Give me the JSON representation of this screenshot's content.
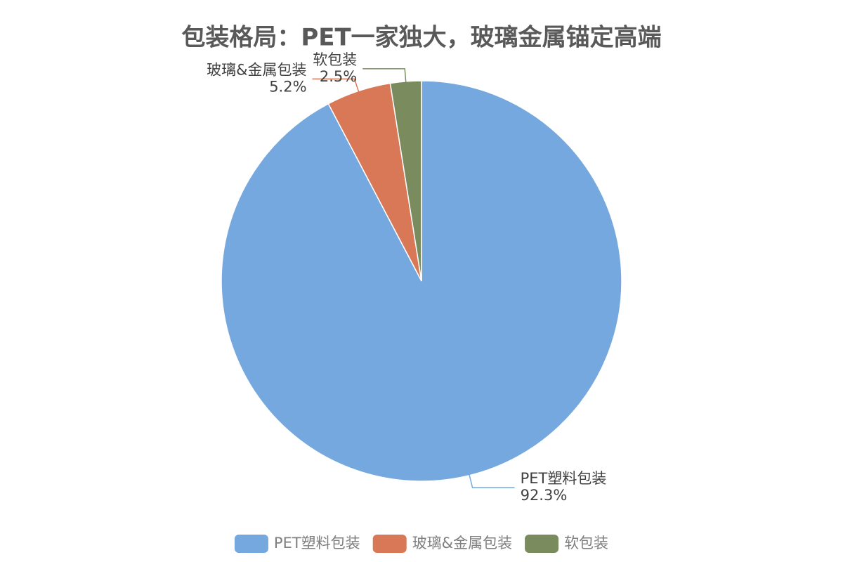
{
  "chart_data": {
    "type": "pie",
    "title": "包装格局：PET一家独大，玻璃金属锚定高端",
    "categories": [
      "PET塑料包装",
      "玻璃&金属包装",
      "软包装"
    ],
    "values": [
      92.3,
      5.2,
      2.5
    ],
    "value_labels": [
      "92.3%",
      "5.2%",
      "2.5%"
    ],
    "colors": [
      "#75a8de",
      "#d97856",
      "#7a8c5e"
    ],
    "legend": "bottom"
  }
}
